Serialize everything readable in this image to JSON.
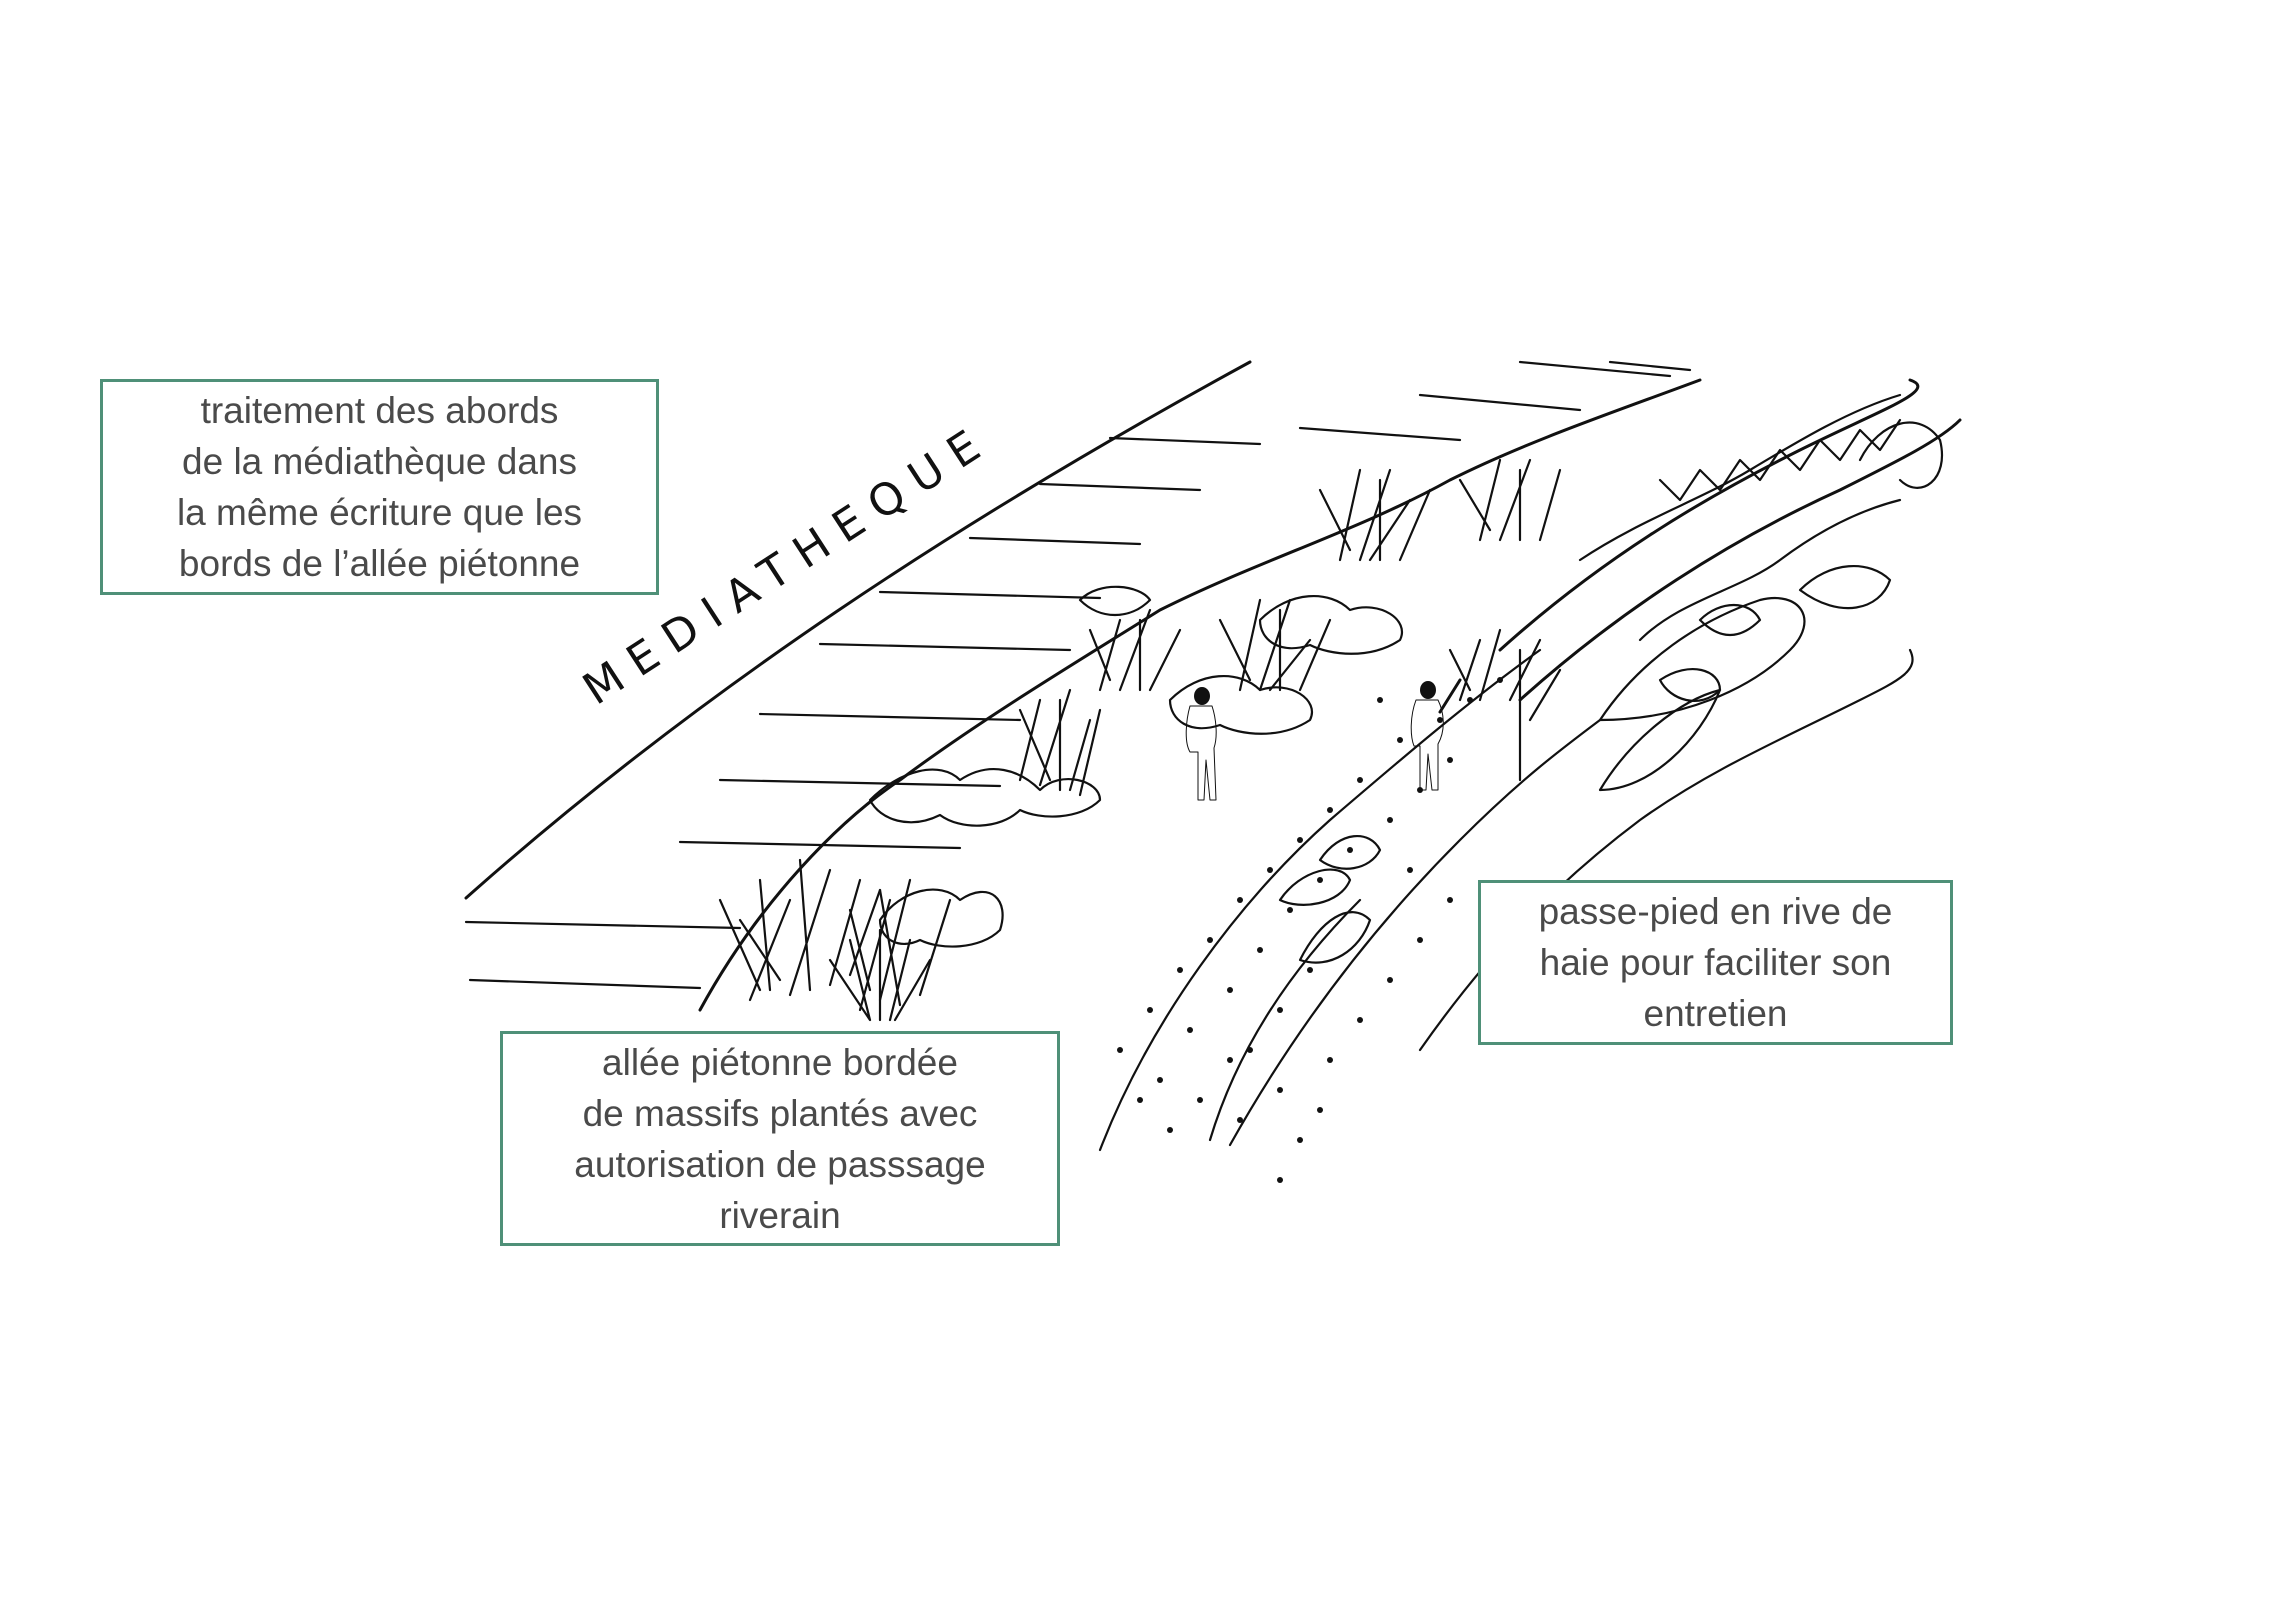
{
  "sketch": {
    "building_lettering": "MEDIATHEQUE"
  },
  "callouts": {
    "mediatheque": "traitement des abords\nde la médiathèque dans\nla même écriture que les\nbords de l’allée piétonne",
    "allee": "allée piétonne bordée\nde massifs plantés avec\nautorisation de passsage\nriverain",
    "passe_pied": "passe-pied en rive de\nhaie pour faciliter son\nentretien"
  }
}
